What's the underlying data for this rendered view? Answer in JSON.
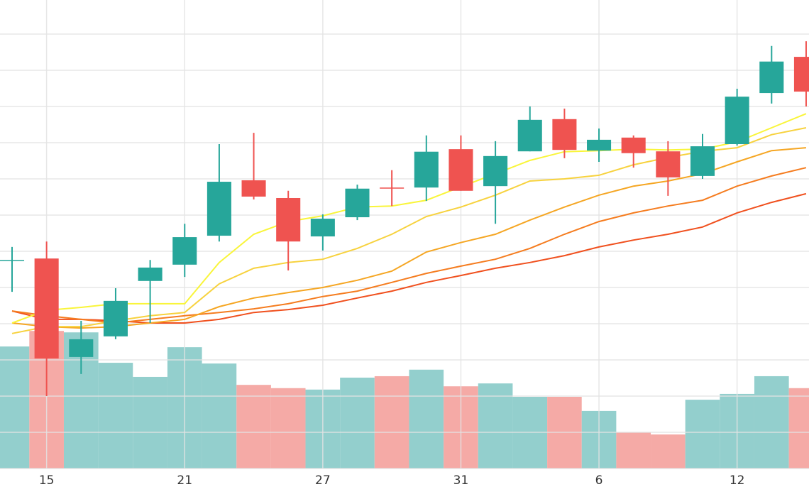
{
  "chart_data": {
    "type": "candlestick",
    "categories": [
      null,
      "15",
      null,
      null,
      null,
      "21",
      null,
      null,
      null,
      "27",
      null,
      null,
      null,
      "31",
      null,
      null,
      null,
      "6",
      null,
      null,
      null,
      "12",
      null,
      null
    ],
    "open": [
      67.6,
      68.0,
      40.8,
      46.5,
      61.8,
      66.3,
      74.3,
      89.6,
      84.7,
      74.1,
      79.4,
      87.6,
      87.6,
      98.2,
      88.0,
      97.6,
      106.5,
      97.8,
      101.4,
      97.6,
      90.8,
      99.6,
      113.7,
      123.7
    ],
    "high": [
      71.2,
      72.7,
      50.8,
      59.8,
      67.6,
      77.6,
      99.6,
      102.7,
      86.7,
      80.2,
      88.4,
      92.4,
      102.0,
      102.0,
      100.4,
      110.0,
      109.4,
      103.9,
      102.0,
      100.4,
      102.4,
      114.9,
      126.7,
      128.0
    ],
    "low": [
      58.8,
      30.0,
      36.1,
      45.7,
      50.2,
      62.9,
      72.7,
      84.3,
      64.7,
      70.2,
      78.6,
      82.5,
      83.9,
      86.7,
      77.6,
      97.6,
      95.7,
      94.7,
      93.1,
      85.3,
      90.0,
      99.2,
      110.8,
      110.0
    ],
    "close": [
      67.6,
      40.4,
      45.7,
      56.3,
      65.5,
      73.9,
      89.2,
      85.1,
      72.7,
      79.0,
      87.3,
      87.3,
      97.5,
      86.7,
      96.3,
      106.3,
      98.0,
      100.8,
      97.1,
      90.4,
      99.0,
      112.7,
      122.4,
      114.1
    ],
    "volume": [
      33.7,
      38.0,
      37.6,
      29.2,
      25.3,
      33.5,
      29.0,
      23.1,
      22.2,
      21.8,
      25.1,
      25.5,
      27.3,
      22.7,
      23.5,
      19.8,
      19.8,
      15.9,
      10.0,
      9.4,
      19.0,
      20.6,
      25.5,
      22.2
    ],
    "up_color": "#26a69a",
    "down_color": "#ef5350",
    "volume_up_color": "#93cfcd",
    "volume_down_color": "#f5aaa6",
    "lines": [
      {
        "color": "#f0501e",
        "values": [
          53.5,
          51.2,
          51.2,
          50.8,
          50.2,
          50.2,
          51.2,
          53.1,
          53.9,
          55.1,
          57.1,
          59.0,
          61.4,
          63.3,
          65.3,
          66.9,
          68.8,
          71.2,
          73.1,
          74.7,
          76.7,
          80.6,
          83.5,
          85.9
        ]
      },
      {
        "color": "#f57c1f",
        "values": [
          53.5,
          52.2,
          51.2,
          50.2,
          51.2,
          52.2,
          53.1,
          54.1,
          55.5,
          57.5,
          59.0,
          61.4,
          63.9,
          65.9,
          67.8,
          70.8,
          74.7,
          78.2,
          80.6,
          82.5,
          84.1,
          88.0,
          90.8,
          93.1
        ]
      },
      {
        "color": "#f5a623",
        "values": [
          50.2,
          49.2,
          48.8,
          49.2,
          50.2,
          51.2,
          54.7,
          57.1,
          58.6,
          60.0,
          62.0,
          64.5,
          69.8,
          72.4,
          74.7,
          78.6,
          82.2,
          85.5,
          88.0,
          89.4,
          91.4,
          94.7,
          97.8,
          98.6
        ]
      },
      {
        "color": "#f7d23e",
        "values": [
          47.3,
          49.2,
          49.2,
          50.8,
          52.2,
          53.1,
          61.0,
          65.3,
          66.9,
          67.8,
          70.8,
          74.7,
          79.6,
          82.2,
          85.5,
          89.4,
          90.0,
          91.0,
          93.9,
          95.9,
          97.6,
          98.6,
          102.2,
          104.1
        ]
      },
      {
        "color": "#f9f53a",
        "values": [
          50.2,
          53.7,
          54.5,
          55.5,
          55.5,
          55.5,
          66.9,
          74.7,
          78.2,
          79.8,
          82.2,
          82.5,
          84.1,
          87.8,
          91.4,
          95.1,
          97.5,
          97.8,
          98.2,
          98.0,
          98.2,
          100.2,
          104.1,
          108.0
        ]
      }
    ],
    "ylim": [
      10,
      139.4
    ],
    "yticks": [
      10,
      20,
      30,
      40,
      50,
      60,
      70,
      80,
      90,
      100,
      110,
      120,
      130
    ],
    "y2lim": [
      0,
      129.4
    ],
    "grid": true
  }
}
